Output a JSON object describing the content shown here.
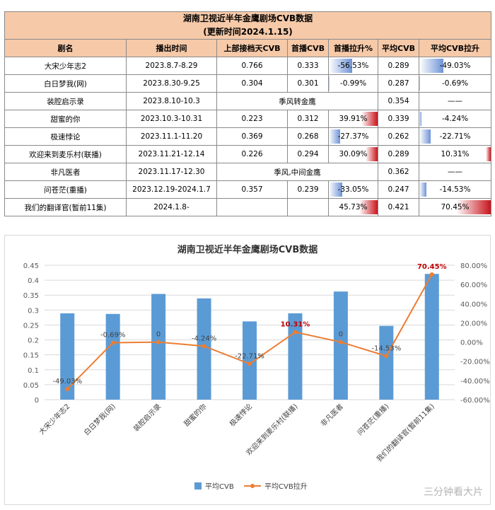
{
  "table": {
    "title_line1": "湖南卫视近半年金鹰剧场CVB数据",
    "title_line2": "(更新时间2024.1.15)",
    "headers": [
      "剧名",
      "播出时间",
      "上部接档天CVB",
      "首播CVB",
      "首播拉升%",
      "平均CVB",
      "平均CVB拉升"
    ],
    "rows": [
      {
        "name": "大宋少年志2",
        "time": "2023.8.7-8.29",
        "prev": "0.766",
        "first": "0.333",
        "first_lift": "-56.53%",
        "first_lift_v": -56.53,
        "avg": "0.289",
        "avg_lift": "-49.03%",
        "avg_lift_v": -49.03
      },
      {
        "name": "白日梦我(网)",
        "time": "2023.8.30-9.25",
        "prev": "0.304",
        "first": "0.301",
        "first_lift": "-0.99%",
        "first_lift_v": -0.99,
        "avg": "0.287",
        "avg_lift": "-0.69%",
        "avg_lift_v": -0.69
      },
      {
        "name": "装腔启示录",
        "time": "2023.8.10-10.3",
        "merged": "季风转金鹰",
        "avg": "0.354",
        "avg_lift": "——"
      },
      {
        "name": "甜蜜的你",
        "time": "2023.10.3-10.31",
        "prev": "0.223",
        "first": "0.312",
        "first_lift": "39.91%",
        "first_lift_v": 39.91,
        "avg": "0.339",
        "avg_lift": "-4.24%",
        "avg_lift_v": -4.24
      },
      {
        "name": "极速悖论",
        "time": "2023.11.1-11.20",
        "prev": "0.369",
        "first": "0.268",
        "first_lift": "-27.37%",
        "first_lift_v": -27.37,
        "avg": "0.262",
        "avg_lift": "-22.71%",
        "avg_lift_v": -22.71
      },
      {
        "name": "欢迎来到麦乐村(联播)",
        "time": "2023.11.21-12.14",
        "prev": "0.226",
        "first": "0.294",
        "first_lift": "30.09%",
        "first_lift_v": 30.09,
        "avg": "0.289",
        "avg_lift": "10.31%",
        "avg_lift_v": 10.31
      },
      {
        "name": "非凡医者",
        "time": "2023.11.17-12.30",
        "merged": "季风,中间金鹰",
        "avg": "0.362",
        "avg_lift": "——"
      },
      {
        "name": "问苍茫(重播)",
        "time": "2023.12.19-2024.1.7",
        "prev": "0.357",
        "first": "0.239",
        "first_lift": "-33.05%",
        "first_lift_v": -33.05,
        "avg": "0.247",
        "avg_lift": "-14.53%",
        "avg_lift_v": -14.53
      },
      {
        "name": "我们的翻译官(暂前11集)",
        "time": "2024.1.8-",
        "prev": "",
        "first": "",
        "first_lift": "45.73%",
        "first_lift_v": 45.73,
        "avg": "0.421",
        "avg_lift": "70.45%",
        "avg_lift_v": 70.45
      }
    ]
  },
  "chart_data": {
    "type": "bar",
    "title": "湖南卫视近半年金鹰剧场CVB数据",
    "categories": [
      "大宋少年志2",
      "白日梦我(网)",
      "装腔启示录",
      "甜蜜的你",
      "极速悖论",
      "欢迎来到麦乐村(联播)",
      "非凡医者",
      "问苍茫(重播)",
      "我们的翻译官(暂前11集)"
    ],
    "series": [
      {
        "name": "平均CVB",
        "kind": "bar",
        "axis": "left",
        "color": "#5b9bd5",
        "values": [
          0.289,
          0.287,
          0.354,
          0.339,
          0.262,
          0.289,
          0.362,
          0.247,
          0.421
        ]
      },
      {
        "name": "平均CVB拉升",
        "kind": "line",
        "axis": "right",
        "color": "#ed7d31",
        "values": [
          -49.03,
          -0.69,
          0,
          -4.24,
          -22.71,
          10.31,
          0,
          -14.53,
          70.45
        ],
        "labels": [
          "-49.03%",
          "-0.69%",
          "0",
          "-4.24%",
          "-22.71%",
          "10.31%",
          "0",
          "-14.53%",
          "70.45%"
        ],
        "highlight_labels": [
          5,
          8
        ]
      }
    ],
    "left_axis": {
      "min": 0,
      "max": 0.45,
      "step": 0.05,
      "ticks": [
        "0",
        "0.05",
        "0.1",
        "0.15",
        "0.2",
        "0.25",
        "0.3",
        "0.35",
        "0.4",
        "0.45"
      ]
    },
    "right_axis": {
      "min": -60,
      "max": 80,
      "step": 20,
      "ticks": [
        "-60.00%",
        "-40.00%",
        "-20.00%",
        "0.00%",
        "20.00%",
        "40.00%",
        "60.00%",
        "80.00%"
      ]
    },
    "grid": true,
    "legend_position": "bottom",
    "colors": {
      "bar": "#5b9bd5",
      "line": "#ed7d31",
      "highlight": "#c00000",
      "grid": "#d9d9d9"
    }
  },
  "watermark": "三分钟看大片"
}
